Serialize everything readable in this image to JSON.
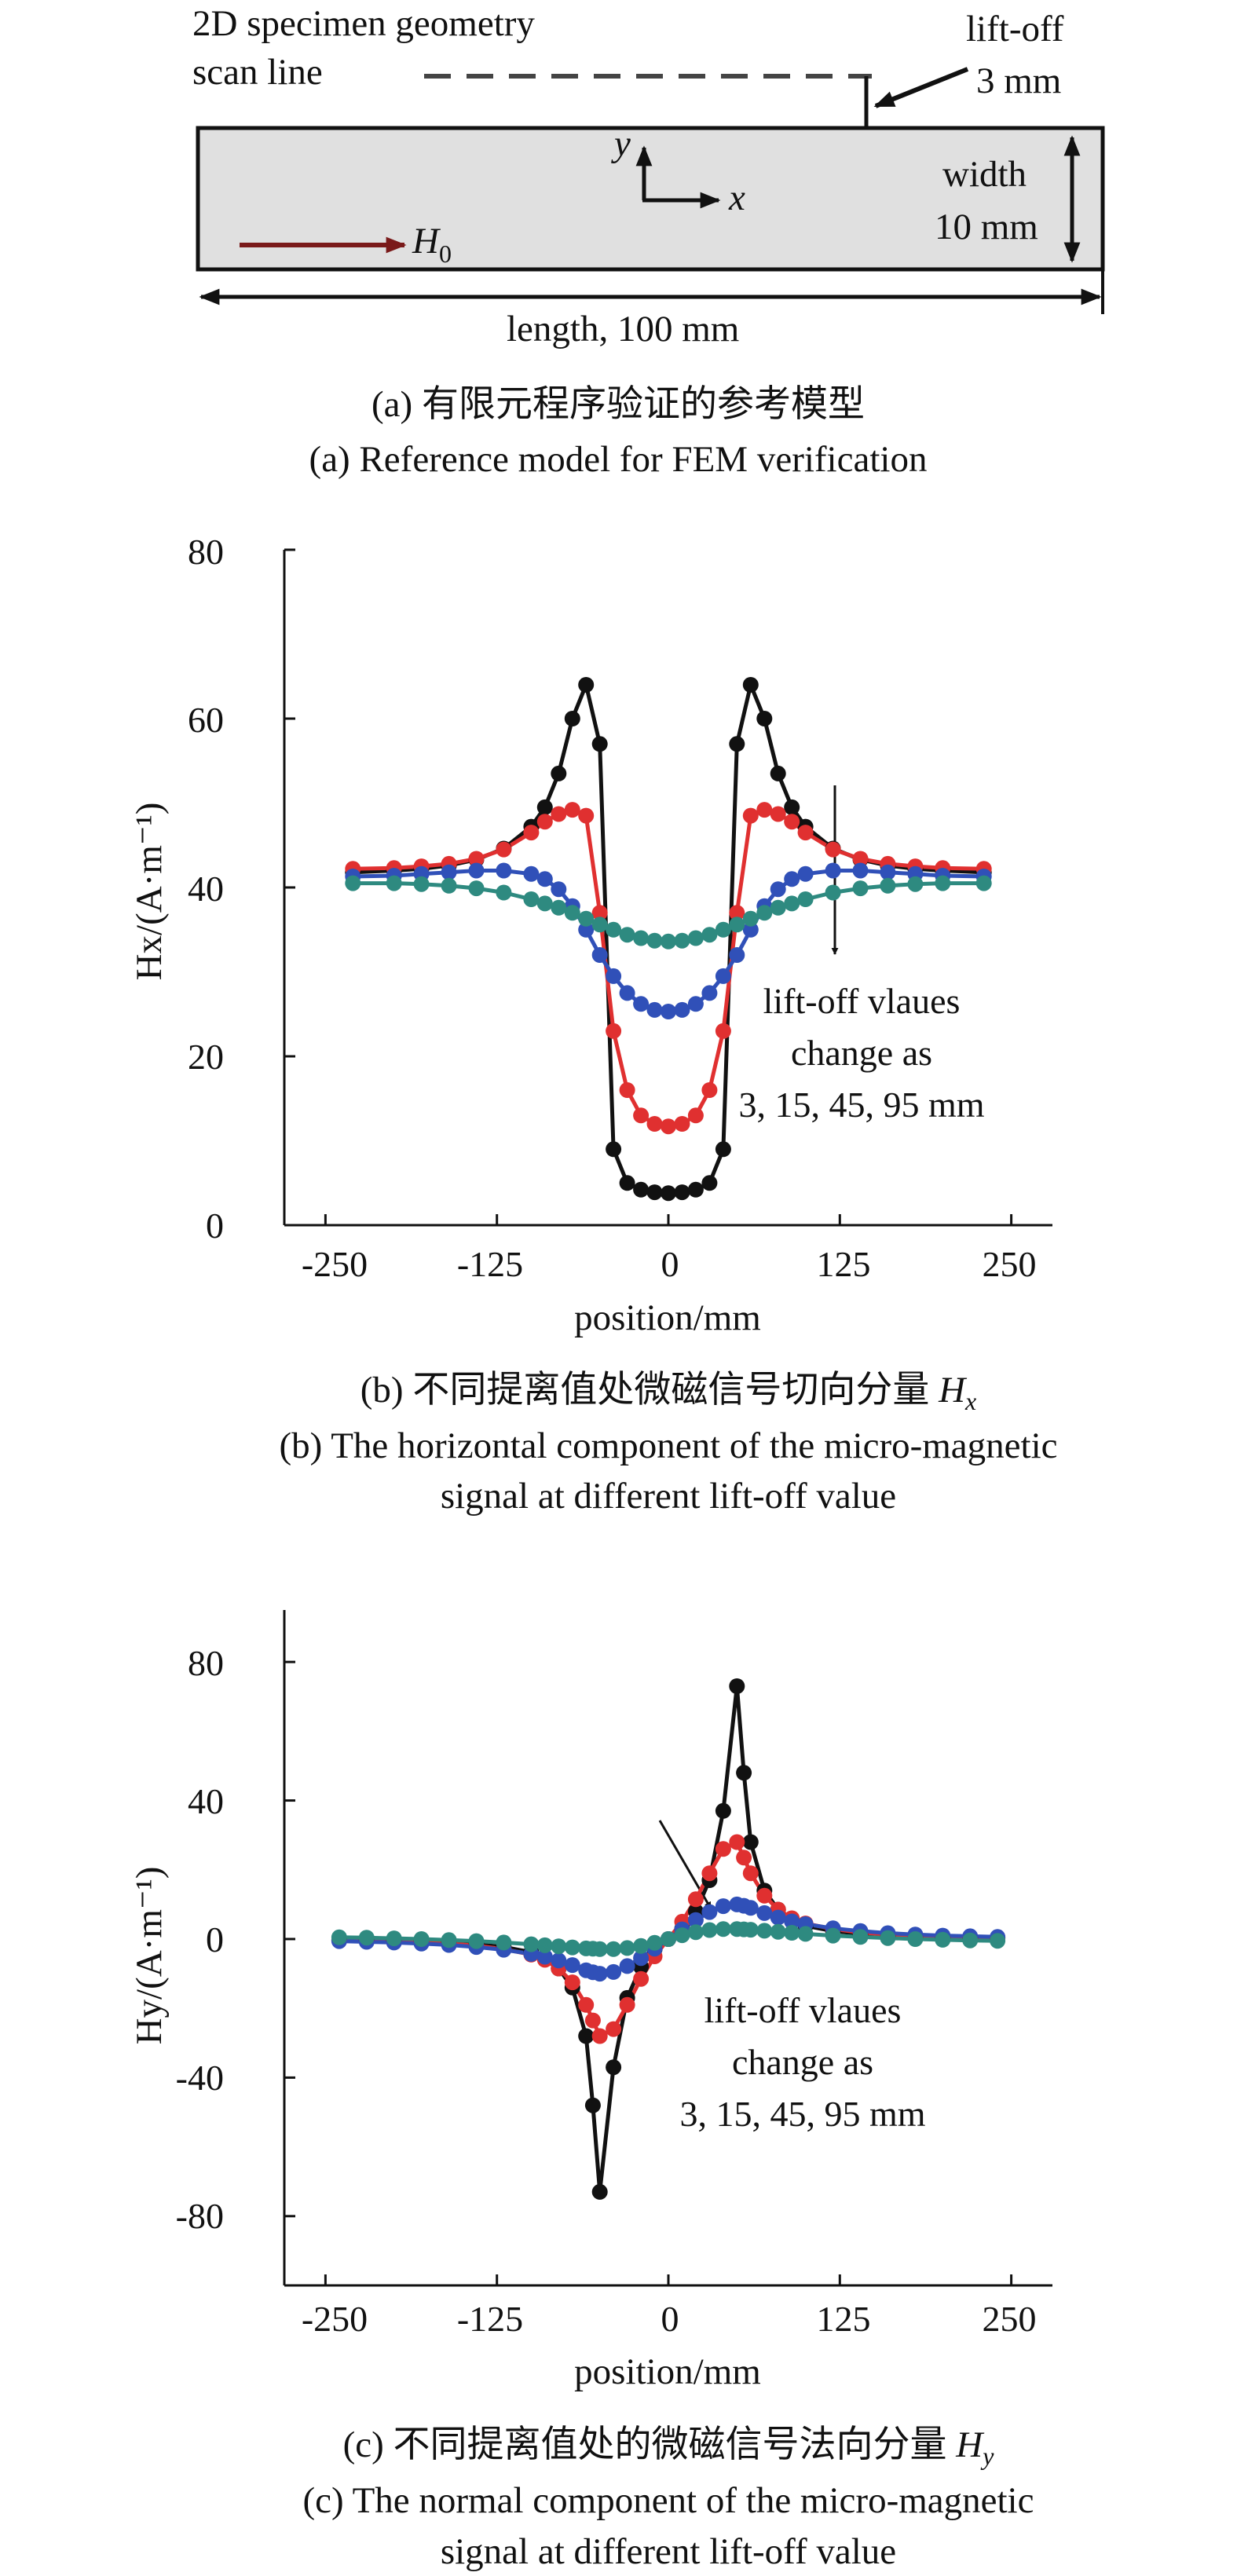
{
  "panel_a": {
    "geometry_label_line1": "2D specimen geometry",
    "geometry_label_line2": "scan line",
    "liftoff_label_line1": "lift-off",
    "liftoff_label_line2": "3 mm",
    "width_label_line1": "width",
    "width_label_line2": "10 mm",
    "length_label": "length, 100 mm",
    "field_label": "H",
    "field_subscript": "0",
    "axis_y": "y",
    "axis_x": "x",
    "caption_cn": "(a) 有限元程序验证的参考模型",
    "caption_en": "(a) Reference model for FEM verification",
    "colors": {
      "specimen_fill": "#e0e0e0",
      "field_arrow": "#7a1a1a"
    }
  },
  "panel_b": {
    "caption_cn_prefix": "(b) 不同提离值处微磁信号切向分量 ",
    "caption_var": "H",
    "caption_sub": "x",
    "caption_en_line1": "(b) The horizontal component of the micro-magnetic",
    "caption_en_line2": "signal at different lift-off value",
    "annotation_line1": "lift-off vlaues",
    "annotation_line2": "change as",
    "annotation_line3": "3, 15, 45, 95 mm"
  },
  "panel_c": {
    "caption_cn_prefix": "(c) 不同提离值处的微磁信号法向分量 ",
    "caption_var": "H",
    "caption_sub": "y",
    "caption_en_line1": "(c) The normal component of the micro-magnetic",
    "caption_en_line2": "signal at different lift-off value",
    "annotation_line1": "lift-off vlaues",
    "annotation_line2": "change as",
    "annotation_line3": "3, 15, 45, 95 mm"
  },
  "chart_data": [
    {
      "type": "line",
      "xlabel": "position/mm",
      "ylabel": "Hx/(A·m⁻¹)",
      "xlim": [
        -280,
        280
      ],
      "ylim": [
        0,
        80
      ],
      "xticks": [
        -250,
        -125,
        0,
        125,
        250
      ],
      "yticks": [
        0,
        20,
        40,
        60,
        80
      ],
      "grid": false,
      "x": [
        -230,
        -200,
        -180,
        -160,
        -140,
        -120,
        -100,
        -90,
        -80,
        -70,
        -60,
        -50,
        -40,
        -30,
        -20,
        -10,
        0,
        10,
        20,
        30,
        40,
        50,
        60,
        70,
        80,
        90,
        100,
        120,
        140,
        160,
        180,
        200,
        230
      ],
      "series": [
        {
          "color": "#111111",
          "values": [
            41.8,
            42.0,
            42.2,
            42.6,
            43.3,
            44.6,
            47.2,
            49.5,
            53.5,
            60.0,
            64.0,
            57.0,
            9.0,
            5.0,
            4.2,
            3.9,
            3.8,
            3.9,
            4.2,
            5.0,
            9.0,
            57.0,
            64.0,
            60.0,
            53.5,
            49.5,
            47.2,
            44.6,
            43.3,
            42.6,
            42.2,
            42.0,
            41.8
          ]
        },
        {
          "color": "#e03030",
          "values": [
            42.2,
            42.3,
            42.5,
            42.8,
            43.4,
            44.5,
            46.5,
            47.8,
            48.7,
            49.2,
            48.5,
            37.0,
            23.0,
            16.0,
            13.0,
            12.0,
            11.7,
            12.0,
            13.0,
            16.0,
            23.0,
            37.0,
            48.5,
            49.2,
            48.7,
            47.8,
            46.5,
            44.5,
            43.4,
            42.8,
            42.5,
            42.3,
            42.2
          ]
        },
        {
          "color": "#3050b8",
          "values": [
            41.3,
            41.4,
            41.6,
            41.8,
            42.0,
            42.0,
            41.6,
            41.0,
            39.8,
            37.8,
            35.0,
            32.0,
            29.5,
            27.5,
            26.2,
            25.5,
            25.3,
            25.5,
            26.2,
            27.5,
            29.5,
            32.0,
            35.0,
            37.8,
            39.8,
            41.0,
            41.6,
            42.0,
            42.0,
            41.8,
            41.6,
            41.4,
            41.3
          ]
        },
        {
          "color": "#2e8a80",
          "values": [
            40.5,
            40.5,
            40.4,
            40.2,
            39.9,
            39.4,
            38.6,
            38.1,
            37.6,
            37.0,
            36.3,
            35.6,
            35.0,
            34.4,
            34.0,
            33.7,
            33.6,
            33.7,
            34.0,
            34.4,
            35.0,
            35.6,
            36.3,
            37.0,
            37.6,
            38.1,
            38.6,
            39.4,
            39.9,
            40.2,
            40.4,
            40.5,
            40.5
          ]
        }
      ]
    },
    {
      "type": "line",
      "xlabel": "position/mm",
      "ylabel": "Hy/(A·m⁻¹)",
      "xlim": [
        -280,
        280
      ],
      "ylim": [
        -100,
        95
      ],
      "xticks": [
        -250,
        -125,
        0,
        125,
        250
      ],
      "yticks": [
        -80,
        -40,
        0,
        40,
        80
      ],
      "grid": false,
      "x": [
        -240,
        -220,
        -200,
        -180,
        -160,
        -140,
        -120,
        -100,
        -90,
        -80,
        -70,
        -60,
        -55,
        -50,
        -40,
        -30,
        -20,
        -10,
        0,
        10,
        20,
        30,
        40,
        50,
        55,
        60,
        70,
        80,
        90,
        100,
        120,
        140,
        160,
        180,
        200,
        220,
        240
      ],
      "series": [
        {
          "color": "#111111",
          "values": [
            -0.3,
            -0.4,
            -0.5,
            -0.7,
            -1.0,
            -1.5,
            -2.3,
            -3.8,
            -5.5,
            -8.5,
            -14.0,
            -28.0,
            -48.0,
            -73.0,
            -37.0,
            -17.0,
            -8.0,
            -3.0,
            0.0,
            3.0,
            8.0,
            17.0,
            37.0,
            73.0,
            48.0,
            28.0,
            14.0,
            8.5,
            5.5,
            3.8,
            2.3,
            1.5,
            1.0,
            0.7,
            0.5,
            0.4,
            0.3
          ]
        },
        {
          "color": "#e03030",
          "values": [
            -0.4,
            -0.5,
            -0.7,
            -0.9,
            -1.3,
            -1.9,
            -2.9,
            -4.5,
            -6.0,
            -8.5,
            -12.5,
            -19.0,
            -23.5,
            -28.0,
            -26.0,
            -19.0,
            -11.5,
            -5.0,
            0.0,
            5.0,
            11.5,
            19.0,
            26.0,
            28.0,
            23.5,
            19.0,
            12.5,
            8.5,
            6.0,
            4.5,
            2.9,
            1.9,
            1.3,
            0.9,
            0.7,
            0.5,
            0.4
          ]
        },
        {
          "color": "#3050b8",
          "values": [
            -0.6,
            -0.8,
            -1.0,
            -1.3,
            -1.7,
            -2.3,
            -3.1,
            -4.3,
            -5.1,
            -6.2,
            -7.5,
            -9.0,
            -9.6,
            -10.0,
            -9.5,
            -7.8,
            -5.5,
            -2.8,
            0.0,
            2.8,
            5.5,
            7.8,
            9.5,
            10.0,
            9.6,
            9.0,
            7.5,
            6.2,
            5.1,
            4.3,
            3.1,
            2.3,
            1.7,
            1.3,
            1.0,
            0.8,
            0.6
          ]
        },
        {
          "color": "#2e8a80",
          "values": [
            0.5,
            0.4,
            0.2,
            0.0,
            -0.3,
            -0.6,
            -1.0,
            -1.5,
            -1.8,
            -2.1,
            -2.4,
            -2.7,
            -2.8,
            -2.9,
            -2.9,
            -2.6,
            -2.0,
            -1.1,
            0.0,
            1.1,
            2.0,
            2.6,
            2.9,
            2.9,
            2.8,
            2.7,
            2.4,
            2.1,
            1.8,
            1.5,
            1.0,
            0.6,
            0.3,
            0.0,
            -0.2,
            -0.4,
            -0.5
          ]
        }
      ]
    }
  ]
}
